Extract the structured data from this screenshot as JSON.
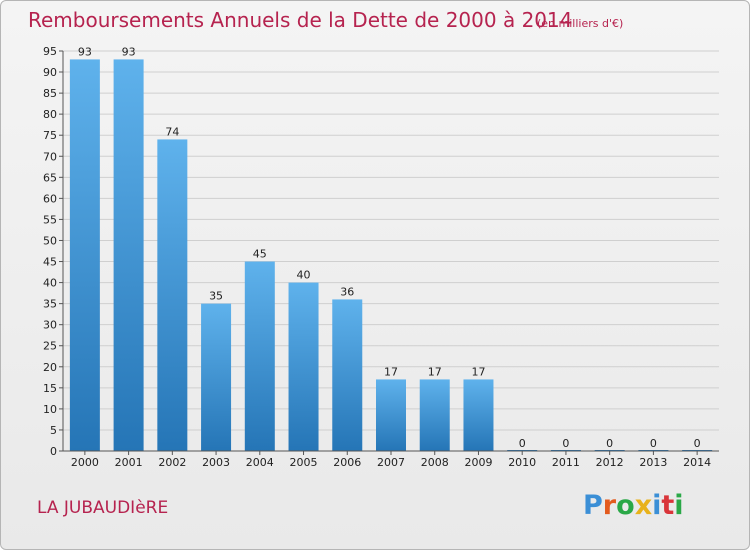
{
  "header": {
    "title": "Remboursements Annuels de la Dette de 2000 à 2014",
    "subtitle": "(en milliers d'€)"
  },
  "footer": {
    "commune": "LA JUBAUDIèRE",
    "logo": [
      "P",
      "r",
      "o",
      "x",
      "i",
      "t",
      "i"
    ]
  },
  "colors": {
    "title": "#b6234f",
    "bar_top": "#5fb2ec",
    "bar_bottom": "#2575b6",
    "grid": "#cfcfcf",
    "logo": [
      "#3b8fd6",
      "#e35b1e",
      "#2aa847",
      "#e8b21a",
      "#3b8fd6",
      "#d9353a",
      "#2aa847"
    ]
  },
  "chart_data": {
    "type": "bar",
    "categories": [
      "2000",
      "2001",
      "2002",
      "2003",
      "2004",
      "2005",
      "2006",
      "2007",
      "2008",
      "2009",
      "2010",
      "2011",
      "2012",
      "2013",
      "2014"
    ],
    "values": [
      93,
      93,
      74,
      35,
      45,
      40,
      36,
      17,
      17,
      17,
      0,
      0,
      0,
      0,
      0
    ],
    "title": "Remboursements Annuels de la Dette de 2000 à 2014",
    "subtitle": "(en milliers d'€)",
    "xlabel": "",
    "ylabel": "",
    "ylim": [
      0,
      95
    ],
    "yticks": [
      0,
      5,
      10,
      15,
      20,
      25,
      30,
      35,
      40,
      45,
      50,
      55,
      60,
      65,
      70,
      75,
      80,
      85,
      90,
      95
    ],
    "grid": true,
    "data_labels": true
  }
}
